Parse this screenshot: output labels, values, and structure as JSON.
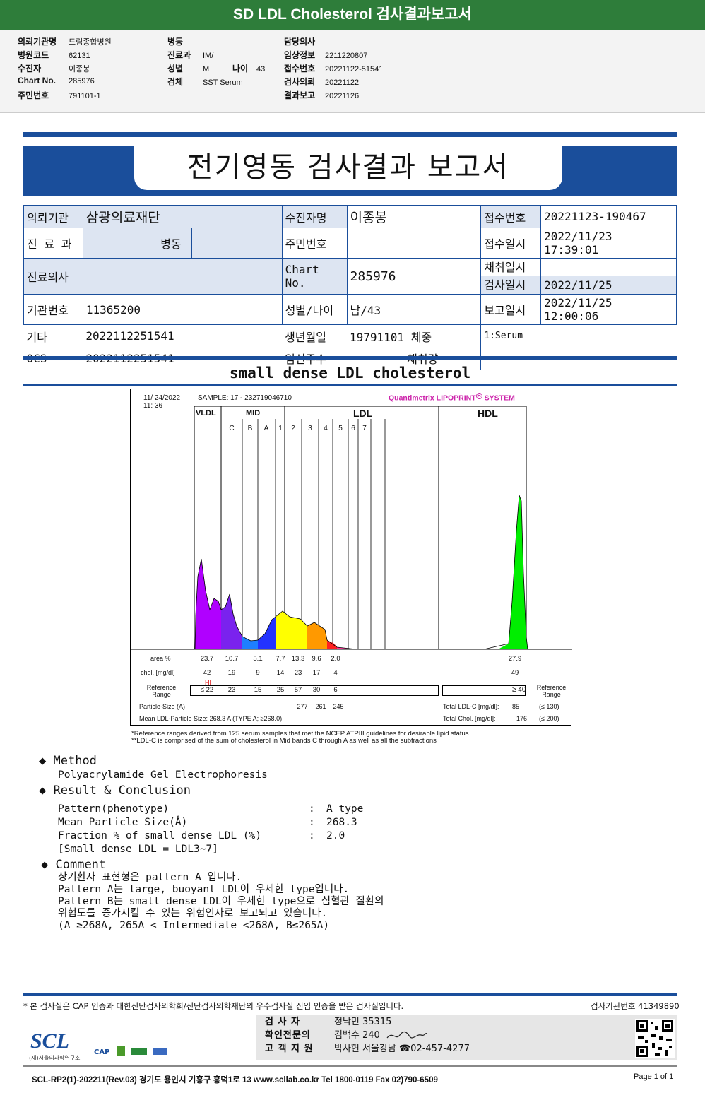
{
  "banner": {
    "title": "SD LDL Cholesterol 검사결과보고서"
  },
  "top_info": {
    "col1": [
      {
        "label": "의뢰기관명",
        "value": "드림종합병원"
      },
      {
        "label": "병원코드",
        "value": "62131"
      },
      {
        "label": "수진자",
        "value": "이종봉"
      },
      {
        "label": "Chart No.",
        "value": "285976"
      },
      {
        "label": "주민번호",
        "value": "791101-1"
      }
    ],
    "col2": [
      {
        "label": "병동",
        "value": ""
      },
      {
        "label": "진료과",
        "value": "IM/"
      },
      {
        "label": "성별",
        "value": "M"
      },
      {
        "label": "검체",
        "value": "SST Serum"
      }
    ],
    "age": {
      "label": "나이",
      "value": "43"
    },
    "col3": [
      {
        "label": "담당의사",
        "value": ""
      },
      {
        "label": "임상정보",
        "value": "2211220807"
      },
      {
        "label": "접수번호",
        "value": "20221122-51541"
      },
      {
        "label": "검사의뢰",
        "value": "20221122"
      },
      {
        "label": "결과보고",
        "value": "20221126"
      }
    ]
  },
  "report": {
    "title": "전기영동 검사결과 보고서",
    "rows": {
      "institution_label": "의뢰기관",
      "institution": "삼광의료재단",
      "patient_label": "수진자명",
      "patient": "이종봉",
      "receipt_no_label": "접수번호",
      "receipt_no": "20221123-190467",
      "dept_label": "진 료 과",
      "dept": "병동",
      "ssn_label": "주민번호",
      "ssn": "",
      "receipt_time_label": "접수일시",
      "receipt_time": "2022/11/23 17:39:01",
      "collect_label": "채취일시",
      "collect": "",
      "doctor_label": "진료의사",
      "doctor": "",
      "chart_label": "Chart No.",
      "chart": "285976",
      "test_date_label": "검사일시",
      "test_date": "2022/11/25",
      "inst_no_label": "기관번호",
      "inst_no": "11365200",
      "sexage_label": "성별/나이",
      "sexage": "남/43",
      "report_date_label": "보고일시",
      "report_date": "2022/11/25 12:00:06",
      "etc_label": "기타",
      "etc": "2022112251541",
      "birth_label": "생년월일",
      "birth": "19791101",
      "weight_label": "체중",
      "specimen": "1:Serum",
      "ocs_label": "OCS",
      "ocs": "2022112251541",
      "preg_label": "임신주수",
      "volume_label": "채취량"
    }
  },
  "section_title": "small dense LDL cholesterol",
  "chart_header": {
    "date": "11/ 24/2022",
    "time": "11: 36",
    "sample": "SAMPLE:   17 - 232719046710",
    "brand": "Quantimetrix LIPOPRINT",
    "brand2": "SYSTEM",
    "reg": "R"
  },
  "chart_data": {
    "type": "area",
    "band_groups": [
      "VLDL",
      "MID",
      "LDL",
      "HDL"
    ],
    "bands": [
      "C",
      "B",
      "A",
      "1",
      "2",
      "3",
      "4",
      "5",
      "6",
      "7"
    ],
    "area_label": "area %",
    "area_values": [
      "23.7",
      "10.7",
      "5.1",
      "7.7",
      "13.3",
      "9.6",
      "2.0",
      "27.9"
    ],
    "chol_label": "chol. [mg/dl]",
    "chol_values": [
      "42",
      "19",
      "9",
      "14",
      "23",
      "17",
      "4",
      "49"
    ],
    "chol_flag": "HI",
    "ref_label": "Reference Range",
    "ref_values": [
      "≤ 22",
      "23",
      "15",
      "25",
      "57",
      "30",
      "6"
    ],
    "hdl_ref": "≥ 40",
    "particle_label": "Particle-Size (A)",
    "particle_values": [
      "277",
      "261",
      "245"
    ],
    "mean_label": "Mean LDL-Particle Size:",
    "mean_value": "268.3  A   (TYPE A; ≥268.0)",
    "total_ldl_label": "Total LDL-C [mg/dl]:",
    "total_ldl": "85",
    "total_ldl_ref": "(≤ 130)",
    "total_chol_label": "Total Chol. [mg/dl]:",
    "total_chol": "176",
    "total_chol_ref": "(≤ 200)",
    "colors": {
      "vldl": "#b000ff",
      "mid_c": "#7a22ee",
      "mid_b": "#1e7fff",
      "mid_a": "#2233ff",
      "ldl1": "#ffff00",
      "ldl2": "#ff9900",
      "ldl3": "#ff2020",
      "ldl4": "#ff3399",
      "hdl": "#00ee00"
    }
  },
  "footnotes": [
    "*Reference ranges derived from 125 serum samples that met the NCEP ATPIII guidelines for desirable lipid status",
    "**LDL-C is comprised of the sum of cholesterol in Mid bands C through A as well as all the subfractions"
  ],
  "method": {
    "title": "Method",
    "text": "Polyacrylamide Gel Electrophoresis"
  },
  "result": {
    "title": "Result & Conclusion",
    "items": [
      {
        "label": "Pattern(phenotype)",
        "value": "A type"
      },
      {
        "label": "Mean Particle Size(Å)",
        "value": "268.3"
      },
      {
        "label": "Fraction % of small dense LDL (%)",
        "value": "2.0"
      }
    ],
    "note": "[Small dense LDL = LDL3~7]"
  },
  "comment": {
    "title": "Comment",
    "lines": [
      "상기환자 표현형은 pattern A 입니다.",
      "Pattern A는 large, buoyant LDL이 우세한 type입니다.",
      "Pattern B는 small dense LDL이 우세한 type으로 심혈관 질환의",
      "위험도를 증가시킬 수 있는 위험인자로 보고되고 있습니다.",
      "(A ≥268A, 265A < Intermediate <268A, B≤265A)"
    ]
  },
  "footer": {
    "cert": "* 본 검사실은 CAP 인증과 대한진단검사의학회/진단검사의학재단의 우수검사실 신임 인증을 받은 검사실입니다.",
    "lab_no": "검사기관번호 41349890",
    "tester_label": "검   사   자",
    "tester": "정낙민 35315",
    "doctor_label": "확인전문의",
    "doctor": "김백수 240",
    "cs_label": "고 객 지 원",
    "cs": "박사현 서울강남 ☎02-457-4277",
    "logo": "SCL",
    "logo_sub": "(재)서울의과학연구소",
    "cert_logo": "CAP",
    "address": "SCL-RP2(1)-202211(Rev.03)  경기도 용인시 기흥구 흥덕1로 13  www.scllab.co.kr  Tel 1800-0119   Fax 02)790-6509",
    "page": "Page 1 of 1"
  }
}
